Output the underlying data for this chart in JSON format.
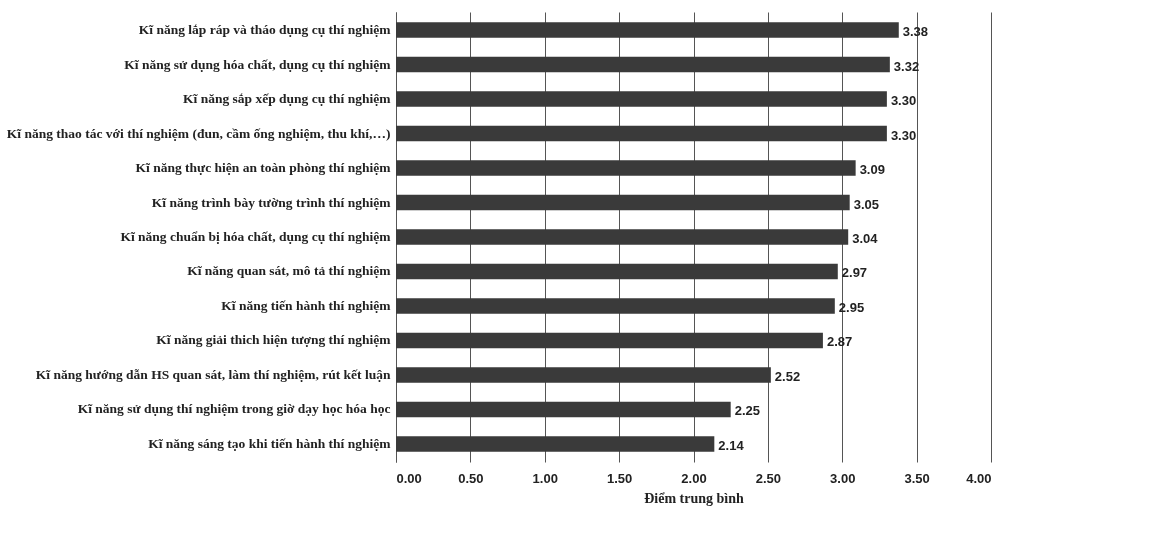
{
  "chart_data": {
    "type": "bar",
    "orientation": "horizontal",
    "xlabel": "Điểm trung bình",
    "categories": [
      "Kĩ năng lắp ráp và tháo dụng cụ thí nghiệm",
      "Kĩ năng sử dụng hóa chất, dụng cụ thí nghiệm",
      "Kĩ năng sắp xếp dụng cụ thí nghiệm",
      "Kĩ năng thao tác với thí nghiệm (đun, cầm ống nghiệm, thu khí,…)",
      "Kĩ năng thực hiện an toàn phòng thí nghiệm",
      "Kĩ năng trình bày tường trình thí nghiệm",
      "Kĩ năng chuẩn bị hóa chất, dụng cụ thí nghiệm",
      "Kĩ năng quan sát, mô tả thí nghiệm",
      "Kĩ năng tiến hành thí nghiệm",
      "Kĩ năng giải thich hiện tượng thí nghiệm",
      "Kĩ năng hướng dẫn HS quan sát, làm thí nghiệm, rút kết luận",
      "Kĩ năng sử dụng thí nghiệm trong giờ dạy học hóa học",
      "Kĩ năng sáng tạo khi tiến hành thí nghiệm"
    ],
    "values": [
      3.38,
      3.32,
      3.3,
      3.3,
      3.09,
      3.05,
      3.04,
      2.97,
      2.95,
      2.87,
      2.52,
      2.25,
      2.14
    ],
    "value_labels": [
      "3.38",
      "3.32",
      "3.30",
      "3.30",
      "3.09",
      "3.05",
      "3.04",
      "2.97",
      "2.95",
      "2.87",
      "2.52",
      "2.25",
      "2.14"
    ],
    "color": "#3a3a3a",
    "xlim": [
      0,
      4
    ],
    "xticks": [
      {
        "value": 0,
        "label": "0.00"
      },
      {
        "value": 0.5,
        "label": "0.50"
      },
      {
        "value": 1,
        "label": "1.00"
      },
      {
        "value": 1.5,
        "label": "1.50"
      },
      {
        "value": 2,
        "label": "2.00"
      },
      {
        "value": 2.5,
        "label": "2.50"
      },
      {
        "value": 3,
        "label": "3.00"
      },
      {
        "value": 3.5,
        "label": "3.50"
      },
      {
        "value": 4,
        "label": "4.00"
      }
    ],
    "grid": "x"
  }
}
